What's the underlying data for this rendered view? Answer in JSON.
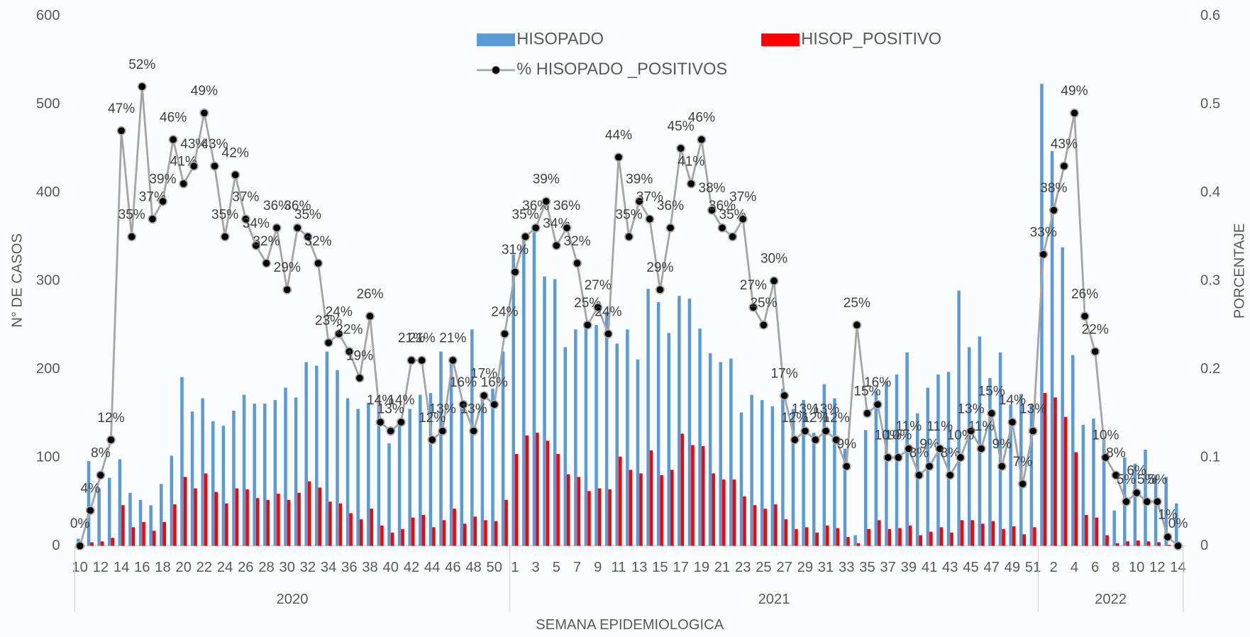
{
  "chart_data": {
    "type": "bar",
    "y_label": "N° DE CASOS",
    "y2_label": "PORCENTAJE",
    "x_label": "SEMANA EPIDEMIOLOGICA",
    "categories": [
      "10",
      null,
      "12",
      null,
      "14",
      null,
      "16",
      null,
      "18",
      null,
      "20",
      null,
      "22",
      null,
      "24",
      null,
      "26",
      null,
      "28",
      null,
      "30",
      null,
      "32",
      null,
      "34",
      null,
      "36",
      null,
      "38",
      null,
      "40",
      null,
      "42",
      null,
      "44",
      null,
      "46",
      null,
      "48",
      null,
      "50",
      null,
      "1",
      null,
      "3",
      null,
      "5",
      null,
      "7",
      null,
      "9",
      null,
      "11",
      null,
      "13",
      null,
      "15",
      null,
      "17",
      null,
      "19",
      null,
      "21",
      null,
      "23",
      null,
      "25",
      null,
      "27",
      null,
      "29",
      null,
      "31",
      null,
      "33",
      null,
      "35",
      null,
      "37",
      null,
      "39",
      null,
      "41",
      null,
      "43",
      null,
      "45",
      null,
      "47",
      null,
      "49",
      null,
      "51",
      null,
      "2",
      null,
      "4",
      null,
      "6",
      null,
      "8",
      null,
      "10",
      null,
      "12",
      null,
      "14"
    ],
    "x_groups": [
      {
        "label": "2020",
        "count": 42
      },
      {
        "label": "2021",
        "count": 51
      },
      {
        "label": "2022",
        "count": 14
      }
    ],
    "series": [
      {
        "name": "HISOPADO",
        "color": "#5b9bd5",
        "values": [
          8,
          96,
          65,
          77,
          98,
          60,
          52,
          46,
          70,
          102,
          191,
          152,
          167,
          141,
          136,
          153,
          171,
          161,
          161,
          165,
          179,
          168,
          208,
          204,
          220,
          199,
          167,
          155,
          162,
          165,
          116,
          140,
          155,
          171,
          173,
          220,
          206,
          160,
          245,
          171,
          178,
          220,
          330,
          352,
          355,
          305,
          302,
          225,
          245,
          248,
          250,
          265,
          229,
          245,
          211,
          291,
          276,
          241,
          283,
          280,
          246,
          218,
          208,
          212,
          151,
          171,
          165,
          158,
          178,
          155,
          165,
          128,
          183,
          167,
          110,
          12,
          131,
          175,
          186,
          194,
          219,
          150,
          179,
          194,
          197,
          289,
          225,
          237,
          190,
          219,
          160,
          172,
          161,
          523,
          447,
          338,
          216,
          137,
          144,
          120,
          40,
          100,
          93,
          109,
          80,
          78,
          48
        ]
      },
      {
        "name": "HISOP_POSITIVO",
        "color": "#ff0000",
        "values": [
          0,
          4,
          5,
          9,
          46,
          21,
          27,
          17,
          27,
          47,
          78,
          65,
          82,
          61,
          48,
          65,
          64,
          54,
          52,
          59,
          52,
          60,
          73,
          66,
          50,
          48,
          37,
          30,
          42,
          23,
          15,
          19,
          32,
          35,
          21,
          29,
          42,
          25,
          33,
          29,
          28,
          52,
          104,
          125,
          128,
          119,
          104,
          81,
          78,
          62,
          65,
          64,
          101,
          86,
          82,
          108,
          80,
          86,
          127,
          114,
          113,
          82,
          75,
          75,
          56,
          46,
          42,
          47,
          30,
          19,
          21,
          15,
          23,
          20,
          10,
          3,
          19,
          29,
          19,
          20,
          23,
          12,
          16,
          21,
          15,
          29,
          29,
          25,
          28,
          19,
          22,
          13,
          21,
          173,
          168,
          146,
          106,
          35,
          32,
          12,
          3,
          5,
          6,
          5,
          4,
          1,
          0
        ]
      },
      {
        "name": "% HISOPADO _POSITIVOS",
        "type": "line",
        "axis": "y2",
        "color": "#a5a5a5",
        "marker_color": "#000000",
        "values": [
          0,
          0.04,
          0.08,
          0.12,
          0.47,
          0.35,
          0.52,
          0.37,
          0.39,
          0.46,
          0.41,
          0.43,
          0.49,
          0.43,
          0.35,
          0.42,
          0.37,
          0.34,
          0.32,
          0.36,
          0.29,
          0.36,
          0.35,
          0.32,
          0.23,
          0.24,
          0.22,
          0.19,
          0.26,
          0.14,
          0.13,
          0.14,
          0.21,
          0.21,
          0.12,
          0.13,
          0.21,
          0.16,
          0.13,
          0.17,
          0.16,
          0.24,
          0.31,
          0.35,
          0.36,
          0.39,
          0.34,
          0.36,
          0.32,
          0.25,
          0.27,
          0.24,
          0.44,
          0.35,
          0.39,
          0.37,
          0.29,
          0.36,
          0.45,
          0.41,
          0.46,
          0.38,
          0.36,
          0.35,
          0.37,
          0.27,
          0.25,
          0.3,
          0.17,
          0.12,
          0.13,
          0.12,
          0.13,
          0.12,
          0.09,
          0.25,
          0.15,
          0.16,
          0.1,
          0.1,
          0.11,
          0.08,
          0.09,
          0.11,
          0.08,
          0.1,
          0.13,
          0.11,
          0.15,
          0.09,
          0.14,
          0.07,
          0.13,
          0.33,
          0.38,
          0.43,
          0.49,
          0.26,
          0.22,
          0.1,
          0.08,
          0.05,
          0.06,
          0.05,
          0.05,
          0.01,
          0
        ],
        "value_labels": [
          "0%",
          "4%",
          "8%",
          "12%",
          "47%",
          "35%",
          "52%",
          "37%",
          "39%",
          "46%",
          "41%",
          "43%",
          "49%",
          "43%",
          "35%",
          "42%",
          "37%",
          "34%",
          "32%",
          "36%",
          "29%",
          "36%",
          "35%",
          "32%",
          "23%",
          "24%",
          "22%",
          "19%",
          "26%",
          "14%",
          "13%",
          "14%",
          "21%",
          "21%",
          "12%",
          "13%",
          "21%",
          "16%",
          "13%",
          "17%",
          "16%",
          "24%",
          "31%",
          "35%",
          "36%",
          "39%",
          "34%",
          "36%",
          "32%",
          "25%",
          "27%",
          "24%",
          "44%",
          "35%",
          "39%",
          "37%",
          "29%",
          "36%",
          "45%",
          "41%",
          "46%",
          "38%",
          "36%",
          "35%",
          "37%",
          "27%",
          "25%",
          "30%",
          "17%",
          "12%",
          "13%",
          "12%",
          "13%",
          "12%",
          "9%",
          "25%",
          "15%",
          "16%",
          "10%",
          "10%",
          "11%",
          "8%",
          "9%",
          "11%",
          "8%",
          "10%",
          "13%",
          "11%",
          "15%",
          "9%",
          "14%",
          "7%",
          "13%",
          "33%",
          "38%",
          "43%",
          "49%",
          "26%",
          "22%",
          "10%",
          "8%",
          "5%",
          "6%",
          "5%",
          "5%",
          "1%",
          "0%"
        ]
      }
    ],
    "ylim": [
      0,
      600
    ],
    "yticks": [
      0,
      100,
      200,
      300,
      400,
      500,
      600
    ],
    "y2lim": [
      0,
      0.6
    ],
    "y2ticks": [
      0,
      0.1,
      0.2,
      0.3,
      0.4,
      0.5,
      0.6
    ],
    "grid": false
  }
}
